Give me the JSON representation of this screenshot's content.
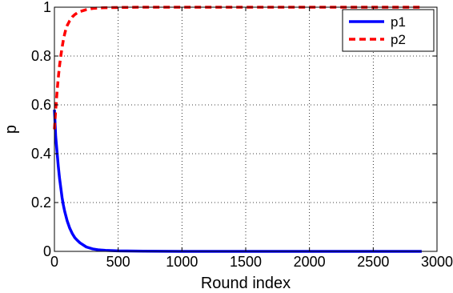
{
  "chart_data": {
    "type": "line",
    "xlabel": "Round index",
    "ylabel": "p",
    "xlim": [
      0,
      3000
    ],
    "ylim": [
      0,
      1
    ],
    "xticks": [
      0,
      500,
      1000,
      1500,
      2000,
      2500,
      3000
    ],
    "yticks": [
      0,
      0.2,
      0.4,
      0.6,
      0.8,
      1
    ],
    "xtick_labels": [
      "0",
      "500",
      "1000",
      "1500",
      "2000",
      "2500",
      "3000"
    ],
    "ytick_labels": [
      "0",
      "0.2",
      "0.4",
      "0.6",
      "0.8",
      "1"
    ],
    "grid": true,
    "legend_position": "top-right",
    "series": [
      {
        "name": "p1",
        "color": "#0000ff",
        "line_style": "solid",
        "x": [
          0,
          10,
          20,
          30,
          40,
          50,
          60,
          70,
          80,
          90,
          100,
          120,
          140,
          160,
          180,
          200,
          250,
          300,
          350,
          400,
          500,
          700,
          1000,
          1500,
          2000,
          2500,
          2880
        ],
        "y": [
          0.58,
          0.47,
          0.41,
          0.35,
          0.3,
          0.26,
          0.22,
          0.19,
          0.165,
          0.145,
          0.125,
          0.095,
          0.073,
          0.056,
          0.045,
          0.035,
          0.018,
          0.01,
          0.006,
          0.004,
          0.002,
          0.001,
          0,
          0,
          0,
          0,
          0
        ]
      },
      {
        "name": "p2",
        "color": "#ff0000",
        "line_style": "dashed",
        "x": [
          0,
          10,
          20,
          30,
          40,
          50,
          60,
          70,
          80,
          90,
          100,
          120,
          140,
          160,
          180,
          200,
          250,
          300,
          350,
          400,
          500,
          700,
          1000,
          1500,
          2000,
          2500,
          2880
        ],
        "y": [
          0.5,
          0.58,
          0.65,
          0.71,
          0.76,
          0.8,
          0.835,
          0.865,
          0.89,
          0.91,
          0.925,
          0.945,
          0.96,
          0.97,
          0.977,
          0.982,
          0.99,
          0.995,
          0.997,
          0.998,
          0.999,
          1,
          1,
          1,
          1,
          1,
          1
        ]
      }
    ]
  }
}
